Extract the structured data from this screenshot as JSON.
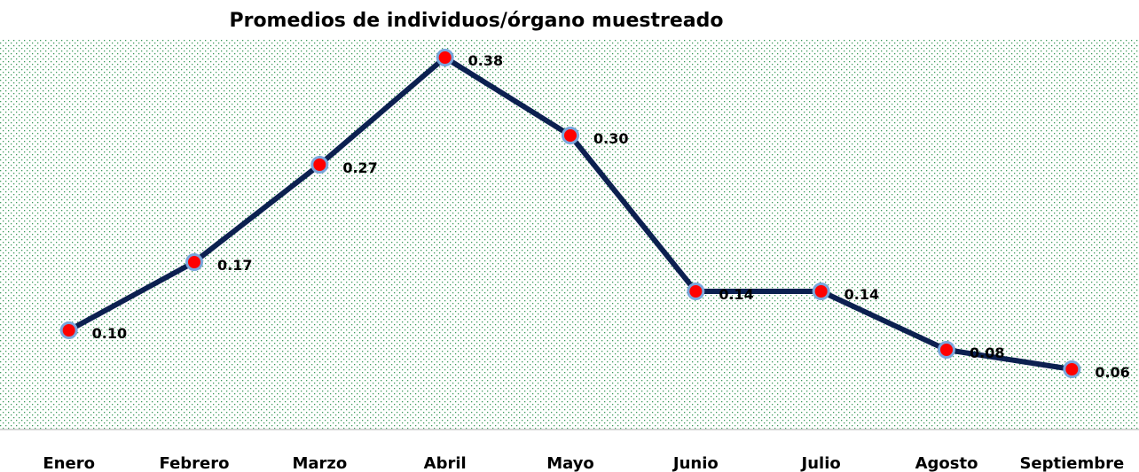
{
  "chart_data": {
    "type": "line",
    "title": "Promedios de individuos/órgano muestreado",
    "categories": [
      "Enero",
      "Febrero",
      "Marzo",
      "Abril",
      "Mayo",
      "Junio",
      "Julio",
      "Agosto",
      "Septiembre"
    ],
    "values": [
      0.1,
      0.17,
      0.27,
      0.38,
      0.3,
      0.14,
      0.14,
      0.08,
      0.06
    ],
    "value_labels": [
      "0.10",
      "0.17",
      "0.27",
      "0.38",
      "0.30",
      "0.14",
      "0.14",
      "0.08",
      "0.06"
    ],
    "color": "#0c2050",
    "marker_color": "#ff0000",
    "ylim": [
      0,
      0.4
    ]
  }
}
